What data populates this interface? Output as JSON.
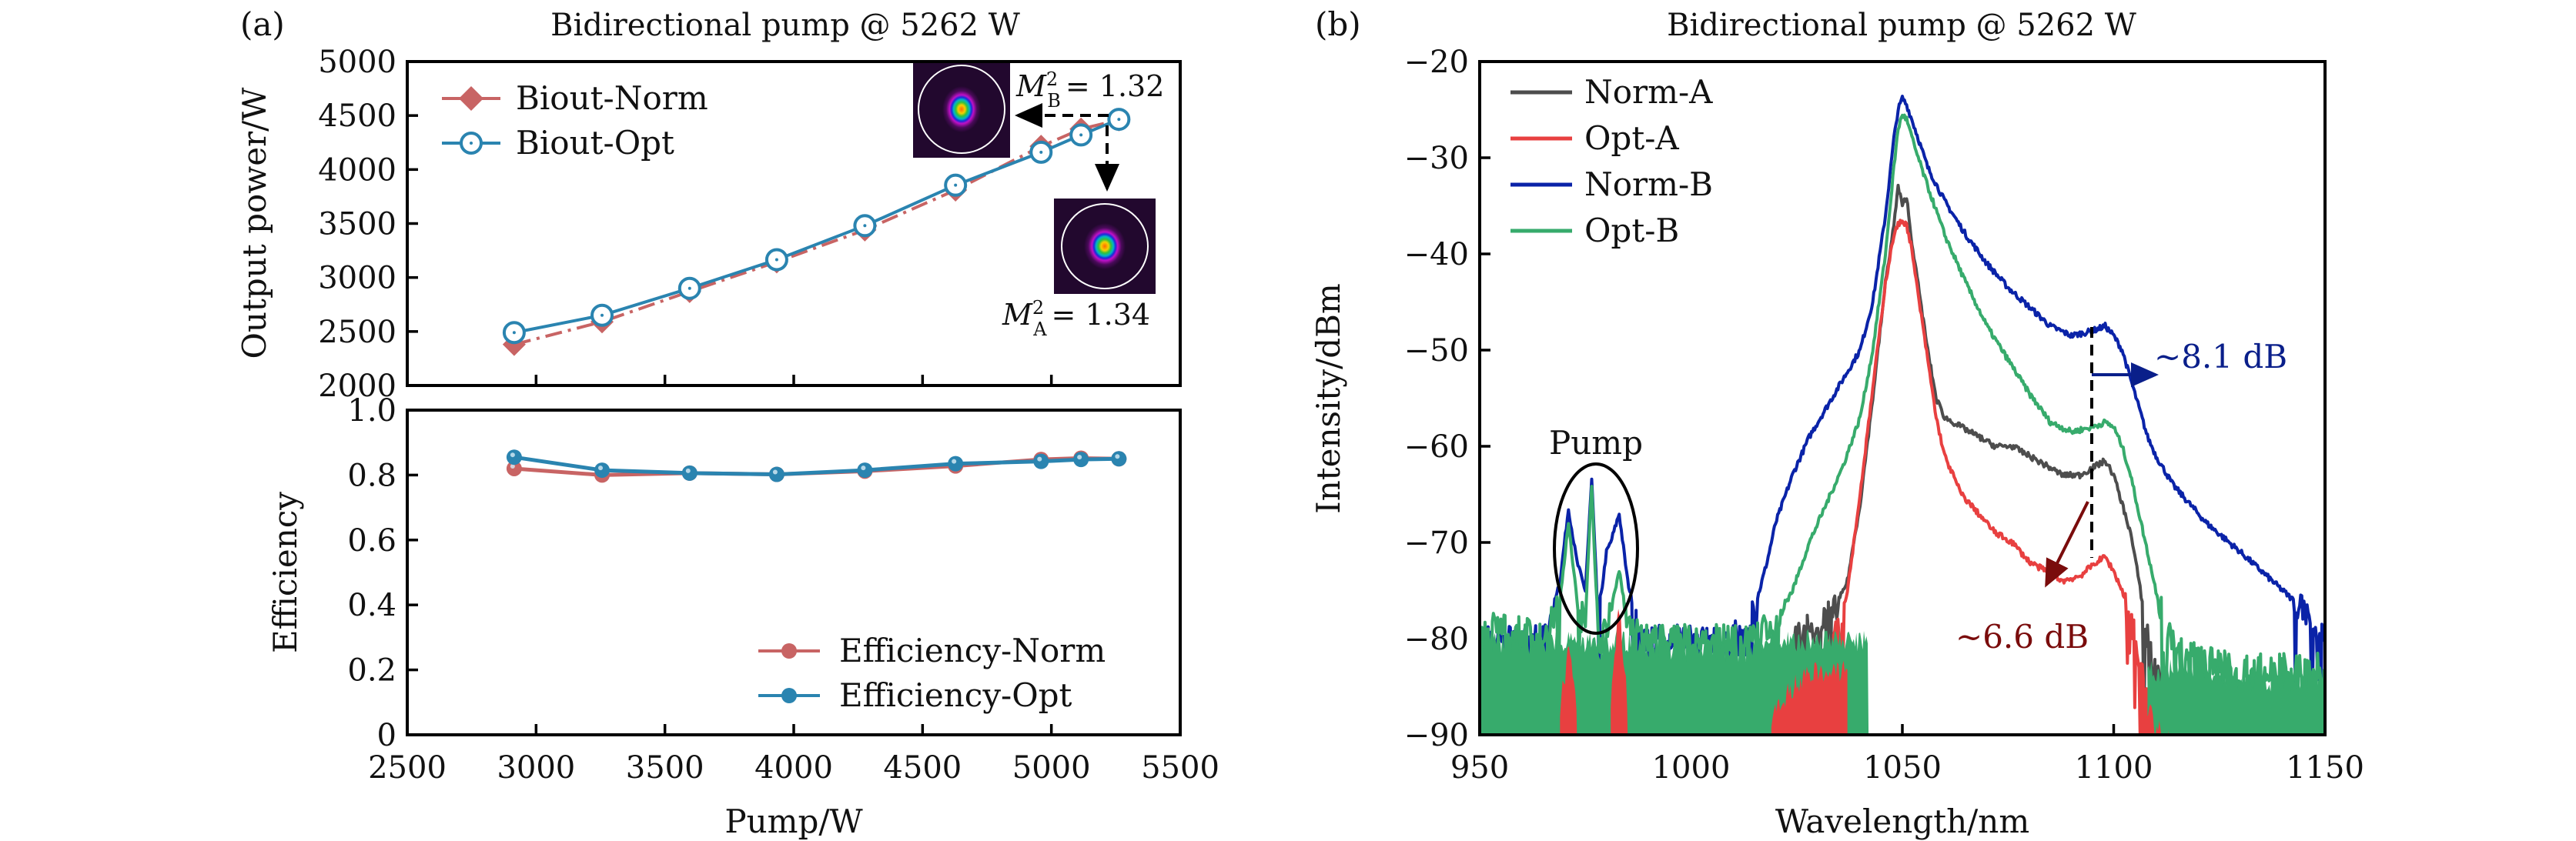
{
  "chart_data": [
    {
      "id": "a_top",
      "type": "line",
      "panel_label": "(a)",
      "title": "Bidirectional pump @ 5262 W",
      "xlabel": "Pump/W",
      "ylabel": "Output power/W",
      "xlim": [
        2500,
        5500
      ],
      "ylim": [
        2000,
        5000
      ],
      "xticks": [
        2500,
        3000,
        3500,
        4000,
        4500,
        5000,
        5500
      ],
      "yticks": [
        2000,
        2500,
        3000,
        3500,
        4000,
        4500,
        5000
      ],
      "ytick_labels": [
        "2000",
        "2500",
        "3000",
        "3500",
        "4000",
        "4500",
        "5000"
      ],
      "legend_position": "top-left",
      "x": [
        2915,
        3256,
        3596,
        3934,
        4276,
        4628,
        4960,
        5115,
        5262
      ],
      "series": [
        {
          "name": "Biout-Norm",
          "color": "#c86464",
          "marker": "diamond",
          "line": "dash-dot",
          "values": [
            2380,
            2590,
            2870,
            3145,
            3440,
            3810,
            4215,
            4375,
            4460
          ]
        },
        {
          "name": "Biout-Opt",
          "color": "#2a84b0",
          "marker": "open-circle",
          "line": "solid",
          "values": [
            2490,
            2650,
            2900,
            3165,
            3480,
            3855,
            4160,
            4320,
            4465
          ]
        }
      ],
      "annotations": [
        {
          "text_main": "M",
          "sup": "2",
          "sub": "B",
          "value": "= 1.32"
        },
        {
          "text_main": "M",
          "sup": "2",
          "sub": "A",
          "value": "= 1.34"
        }
      ]
    },
    {
      "id": "a_bottom",
      "type": "line",
      "xlabel": "Pump/W",
      "ylabel": "Efficiency",
      "xlim": [
        2500,
        5500
      ],
      "ylim": [
        0,
        1.0
      ],
      "xticks": [
        2500,
        3000,
        3500,
        4000,
        4500,
        5000,
        5500
      ],
      "xtick_labels": [
        "2500",
        "3000",
        "3500",
        "4000",
        "4500",
        "5000",
        "5500"
      ],
      "yticks": [
        0,
        0.2,
        0.4,
        0.6,
        0.8,
        1.0
      ],
      "ytick_labels": [
        "0",
        "0.2",
        "0.4",
        "0.6",
        "0.8",
        "1.0"
      ],
      "legend_position": "bottom-right",
      "x": [
        2915,
        3256,
        3596,
        3934,
        4276,
        4628,
        4960,
        5115,
        5262
      ],
      "series": [
        {
          "name": "Efficiency-Norm",
          "color": "#c86464",
          "marker": "filled-circle",
          "values": [
            0.82,
            0.8,
            0.806,
            0.802,
            0.812,
            0.828,
            0.848,
            0.852,
            0.85
          ]
        },
        {
          "name": "Efficiency-Opt",
          "color": "#2a84b0",
          "marker": "filled-circle",
          "values": [
            0.855,
            0.815,
            0.806,
            0.802,
            0.815,
            0.835,
            0.842,
            0.848,
            0.85
          ]
        }
      ]
    },
    {
      "id": "b",
      "type": "line",
      "panel_label": "(b)",
      "title": "Bidirectional pump @ 5262 W",
      "xlabel": "Wavelength/nm",
      "ylabel": "Intensity/dBm",
      "xlim": [
        950,
        1150
      ],
      "ylim": [
        -90,
        -20
      ],
      "xticks": [
        950,
        1000,
        1050,
        1100,
        1150
      ],
      "xtick_labels": [
        "950",
        "1000",
        "1050",
        "1100",
        "1150"
      ],
      "yticks": [
        -90,
        -80,
        -70,
        -60,
        -50,
        -40,
        -30,
        -20
      ],
      "ytick_labels": [
        "−90",
        "−80",
        "−70",
        "−60",
        "−50",
        "−40",
        "−30",
        "−20"
      ],
      "legend_position": "top-left",
      "series": [
        {
          "name": "Norm-A",
          "color": "#4d4d4d",
          "x": [
            1018,
            1022,
            1026,
            1030,
            1034,
            1037,
            1040,
            1043,
            1046,
            1048,
            1049,
            1050,
            1051,
            1052,
            1054,
            1056,
            1058,
            1060,
            1064,
            1068,
            1072,
            1076,
            1080,
            1084,
            1088,
            1092,
            1096,
            1098,
            1100,
            1102,
            1104,
            1106,
            1108,
            1110,
            1114,
            1118,
            1122,
            1126
          ],
          "values": [
            -86,
            -82,
            -79,
            -78,
            -77,
            -74,
            -66,
            -55,
            -43,
            -37,
            -33,
            -35,
            -34,
            -38,
            -44,
            -50,
            -55,
            -57,
            -58,
            -59,
            -60,
            -60,
            -61,
            -62,
            -63,
            -63,
            -62,
            -61.5,
            -63,
            -66,
            -69,
            -74,
            -80,
            -84,
            -86,
            -88,
            -89,
            -90
          ]
        },
        {
          "name": "Opt-A",
          "color": "#e84040",
          "x": [
            1018,
            1022,
            1026,
            1030,
            1034,
            1037,
            1040,
            1043,
            1046,
            1048,
            1049,
            1050,
            1051,
            1052,
            1054,
            1056,
            1058,
            1060,
            1064,
            1068,
            1072,
            1076,
            1080,
            1084,
            1088,
            1092,
            1096,
            1098,
            1100,
            1102,
            1104,
            1106,
            1108,
            1110,
            1114
          ],
          "values": [
            -88,
            -85,
            -83,
            -82,
            -80,
            -75,
            -65,
            -54,
            -43,
            -38,
            -37,
            -36.5,
            -37,
            -39,
            -45,
            -51,
            -57,
            -61,
            -65,
            -67,
            -69,
            -70,
            -72,
            -73,
            -74,
            -73.5,
            -72,
            -71.5,
            -73,
            -75,
            -78,
            -82,
            -86,
            -88,
            -90
          ]
        },
        {
          "name": "Norm-B",
          "color": "#0a23a8",
          "x": [
            950,
            955,
            960,
            965,
            969,
            971,
            973,
            975,
            976.5,
            978,
            980,
            981,
            983,
            985,
            988,
            995,
            1005,
            1012,
            1015,
            1018,
            1020,
            1024,
            1028,
            1032,
            1036,
            1040,
            1043,
            1046,
            1048,
            1049,
            1050,
            1051,
            1053,
            1056,
            1060,
            1065,
            1070,
            1075,
            1080,
            1085,
            1090,
            1095,
            1098,
            1100,
            1102,
            1104,
            1106,
            1108,
            1110,
            1114,
            1118,
            1122,
            1126,
            1130,
            1135,
            1140,
            1145,
            1150
          ],
          "values": [
            -80,
            -80,
            -80,
            -80,
            -74,
            -66.5,
            -72,
            -75,
            -63.5,
            -78,
            -71,
            -70,
            -67,
            -74,
            -80,
            -80,
            -80,
            -79.5,
            -77,
            -72,
            -68,
            -63,
            -59,
            -56,
            -53,
            -50,
            -45,
            -36,
            -28,
            -25,
            -23.8,
            -24.5,
            -27,
            -31,
            -34.5,
            -38,
            -41,
            -43.5,
            -45.5,
            -47.5,
            -48.5,
            -48,
            -47.5,
            -48.5,
            -50,
            -53,
            -56,
            -59,
            -61,
            -64,
            -66,
            -68,
            -69.5,
            -71,
            -73,
            -75,
            -77,
            -79.5
          ]
        },
        {
          "name": "Opt-B",
          "color": "#37ab6c",
          "x": [
            950,
            955,
            960,
            965,
            969,
            971,
            973,
            975,
            976.5,
            978,
            980,
            983,
            985,
            988,
            995,
            1005,
            1015,
            1020,
            1024,
            1028,
            1032,
            1036,
            1040,
            1043,
            1046,
            1048,
            1049,
            1050,
            1051,
            1053,
            1056,
            1060,
            1065,
            1070,
            1075,
            1080,
            1085,
            1090,
            1095,
            1098,
            1100,
            1102,
            1104,
            1106,
            1108,
            1110,
            1112,
            1115,
            1120,
            1130,
            1140,
            1150
          ],
          "values": [
            -78,
            -79,
            -79,
            -79.5,
            -76,
            -68,
            -76,
            -78,
            -64,
            -80,
            -79,
            -73,
            -78,
            -80,
            -80,
            -80,
            -80,
            -78,
            -75,
            -70,
            -66,
            -62,
            -57,
            -50,
            -40,
            -31,
            -27,
            -25.5,
            -26,
            -29,
            -33,
            -38,
            -43,
            -47.5,
            -51,
            -54.5,
            -57.5,
            -58.5,
            -58,
            -57.5,
            -58,
            -60,
            -63,
            -67,
            -71,
            -75,
            -78,
            -81,
            -82,
            -83,
            -83,
            -83
          ]
        }
      ],
      "annotations": [
        {
          "text": "Pump"
        },
        {
          "text": "~8.1 dB",
          "color": "#0a1f8a"
        },
        {
          "text": "~6.6 dB",
          "color": "#7a0c0c"
        }
      ]
    }
  ]
}
